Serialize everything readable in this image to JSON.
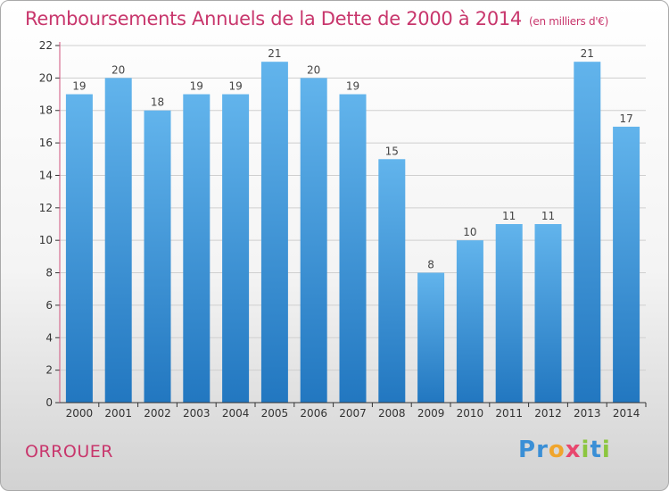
{
  "title": "Remboursements Annuels de la Dette de 2000 à 2014",
  "subtitle": "(en milliers d'€)",
  "city": "ORROUER",
  "logo": {
    "text": "Proxiti",
    "letters": [
      {
        "ch": "P",
        "cls": "c1"
      },
      {
        "ch": "r",
        "cls": "c1"
      },
      {
        "ch": "o",
        "cls": "c2"
      },
      {
        "ch": "x",
        "cls": "c4"
      },
      {
        "ch": "i",
        "cls": "c3"
      },
      {
        "ch": "t",
        "cls": "c1"
      },
      {
        "ch": "i",
        "cls": "c3"
      }
    ]
  },
  "colors": {
    "bar_top": "#62b4ec",
    "bar_bottom": "#2277c0",
    "title": "#c8366c",
    "axis": "#333333",
    "grid": "#cfcfcf",
    "axis_left": "#d0527c"
  },
  "chart_data": {
    "type": "bar",
    "categories": [
      "2000",
      "2001",
      "2002",
      "2003",
      "2004",
      "2005",
      "2006",
      "2007",
      "2008",
      "2009",
      "2010",
      "2011",
      "2012",
      "2013",
      "2014"
    ],
    "values": [
      19,
      20,
      18,
      19,
      19,
      21,
      20,
      19,
      15,
      8,
      10,
      11,
      11,
      21,
      17
    ],
    "ylim": [
      0,
      22
    ],
    "yticks": [
      0,
      2,
      4,
      6,
      8,
      10,
      12,
      14,
      16,
      18,
      20,
      22
    ],
    "grid": true,
    "title": "Remboursements Annuels de la Dette de 2000 à 2014",
    "xlabel": "",
    "ylabel": ""
  }
}
